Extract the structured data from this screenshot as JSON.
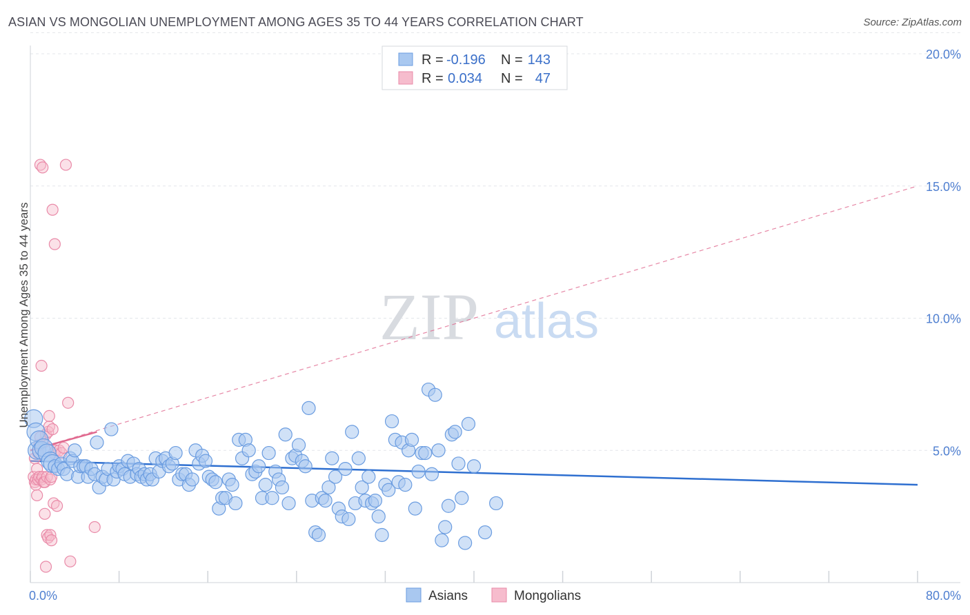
{
  "title": "ASIAN VS MONGOLIAN UNEMPLOYMENT AMONG AGES 35 TO 44 YEARS CORRELATION CHART",
  "source": "Source: ZipAtlas.com",
  "watermark": {
    "zip": "ZIP",
    "atlas": "atlas"
  },
  "colors": {
    "asian_fill": "#a9c8f0",
    "asian_stroke": "#6a9ce0",
    "asian_line": "#2e6fd0",
    "mongol_fill": "#f6bccd",
    "mongol_stroke": "#e98aa8",
    "mongol_line": "#e0698f",
    "grid": "#e3e6ea",
    "tick_text": "#4f7fd0"
  },
  "legend": {
    "rows": [
      {
        "r_label": "R =",
        "r_value": "-0.196",
        "n_label": "N =",
        "n_value": "143"
      },
      {
        "r_label": "R =",
        "r_value": "0.034",
        "n_label": "N =",
        "n_value": "47"
      }
    ]
  },
  "chart_data": {
    "type": "scatter",
    "title": "ASIAN VS MONGOLIAN UNEMPLOYMENT AMONG AGES 35 TO 44 YEARS CORRELATION CHART",
    "xlabel": "",
    "ylabel": "Unemployment Among Ages 35 to 44 years",
    "xlim": [
      0,
      80
    ],
    "ylim": [
      0,
      20
    ],
    "x_tick_labels": {
      "min": "0.0%",
      "max": "80.0%"
    },
    "y_ticks": [
      5,
      10,
      15,
      20
    ],
    "y_tick_labels": [
      "5.0%",
      "10.0%",
      "15.0%",
      "20.0%"
    ],
    "grid": true,
    "legend_position": "top-center",
    "series": [
      {
        "name": "Asians",
        "trend": {
          "x": [
            0,
            80
          ],
          "y": [
            4.6,
            3.7
          ]
        },
        "points": [
          [
            0.3,
            6.2
          ],
          [
            0.5,
            5.7
          ],
          [
            0.6,
            5.0
          ],
          [
            0.8,
            5.4
          ],
          [
            1.0,
            5.0
          ],
          [
            1.2,
            5.1
          ],
          [
            1.5,
            4.9
          ],
          [
            1.8,
            4.6
          ],
          [
            2.0,
            4.5
          ],
          [
            2.2,
            4.4
          ],
          [
            2.5,
            4.3
          ],
          [
            2.8,
            4.5
          ],
          [
            3.0,
            4.3
          ],
          [
            3.3,
            4.1
          ],
          [
            3.6,
            4.7
          ],
          [
            3.8,
            4.6
          ],
          [
            4.0,
            5.0
          ],
          [
            4.3,
            4.0
          ],
          [
            4.5,
            4.4
          ],
          [
            4.8,
            4.4
          ],
          [
            5.0,
            4.4
          ],
          [
            5.2,
            4.0
          ],
          [
            5.5,
            4.3
          ],
          [
            5.8,
            4.1
          ],
          [
            6.0,
            5.3
          ],
          [
            6.2,
            3.6
          ],
          [
            6.5,
            4.0
          ],
          [
            6.8,
            3.9
          ],
          [
            7.0,
            4.3
          ],
          [
            7.3,
            5.8
          ],
          [
            7.5,
            3.9
          ],
          [
            7.8,
            4.2
          ],
          [
            8.0,
            4.4
          ],
          [
            8.3,
            4.3
          ],
          [
            8.5,
            4.1
          ],
          [
            8.8,
            4.6
          ],
          [
            9.0,
            4.0
          ],
          [
            9.3,
            4.5
          ],
          [
            9.6,
            4.1
          ],
          [
            9.8,
            4.3
          ],
          [
            10.0,
            4.0
          ],
          [
            10.3,
            4.1
          ],
          [
            10.5,
            3.9
          ],
          [
            10.8,
            4.1
          ],
          [
            11.0,
            3.9
          ],
          [
            11.3,
            4.7
          ],
          [
            11.6,
            4.2
          ],
          [
            11.9,
            4.6
          ],
          [
            12.2,
            4.7
          ],
          [
            12.5,
            4.4
          ],
          [
            12.8,
            4.5
          ],
          [
            13.1,
            4.9
          ],
          [
            13.4,
            3.9
          ],
          [
            13.7,
            4.1
          ],
          [
            14.0,
            4.1
          ],
          [
            14.3,
            3.7
          ],
          [
            14.6,
            3.9
          ],
          [
            14.9,
            5.0
          ],
          [
            15.2,
            4.5
          ],
          [
            15.5,
            4.8
          ],
          [
            15.8,
            4.6
          ],
          [
            16.1,
            4.0
          ],
          [
            16.4,
            3.9
          ],
          [
            16.7,
            3.8
          ],
          [
            17.0,
            2.8
          ],
          [
            17.3,
            3.2
          ],
          [
            17.6,
            3.2
          ],
          [
            17.9,
            3.9
          ],
          [
            18.2,
            3.7
          ],
          [
            18.5,
            3.0
          ],
          [
            18.8,
            5.4
          ],
          [
            19.1,
            4.7
          ],
          [
            19.4,
            5.4
          ],
          [
            19.7,
            5.0
          ],
          [
            20.0,
            4.1
          ],
          [
            20.3,
            4.2
          ],
          [
            20.6,
            4.4
          ],
          [
            20.9,
            3.2
          ],
          [
            21.2,
            3.7
          ],
          [
            21.5,
            4.9
          ],
          [
            21.8,
            3.2
          ],
          [
            22.1,
            4.2
          ],
          [
            22.4,
            3.9
          ],
          [
            22.7,
            3.6
          ],
          [
            23.0,
            5.6
          ],
          [
            23.3,
            3.0
          ],
          [
            23.6,
            4.7
          ],
          [
            23.9,
            4.8
          ],
          [
            24.2,
            5.2
          ],
          [
            24.5,
            4.6
          ],
          [
            24.8,
            4.4
          ],
          [
            25.1,
            6.6
          ],
          [
            25.4,
            3.1
          ],
          [
            25.7,
            1.9
          ],
          [
            26.0,
            1.8
          ],
          [
            26.3,
            3.2
          ],
          [
            26.6,
            3.1
          ],
          [
            26.9,
            3.6
          ],
          [
            27.2,
            4.7
          ],
          [
            27.5,
            4.0
          ],
          [
            27.8,
            2.8
          ],
          [
            28.1,
            2.5
          ],
          [
            28.4,
            4.3
          ],
          [
            28.7,
            2.4
          ],
          [
            29.0,
            5.7
          ],
          [
            29.3,
            3.0
          ],
          [
            29.6,
            4.7
          ],
          [
            29.9,
            3.6
          ],
          [
            30.2,
            3.1
          ],
          [
            30.5,
            4.0
          ],
          [
            30.8,
            3.0
          ],
          [
            31.1,
            3.1
          ],
          [
            31.4,
            2.5
          ],
          [
            31.7,
            1.8
          ],
          [
            32.0,
            3.7
          ],
          [
            32.3,
            3.5
          ],
          [
            32.6,
            6.1
          ],
          [
            32.9,
            5.4
          ],
          [
            33.2,
            3.8
          ],
          [
            33.5,
            5.3
          ],
          [
            33.8,
            3.7
          ],
          [
            34.1,
            5.0
          ],
          [
            34.4,
            5.4
          ],
          [
            34.7,
            2.8
          ],
          [
            35.0,
            4.2
          ],
          [
            35.3,
            4.9
          ],
          [
            35.6,
            4.9
          ],
          [
            35.9,
            7.3
          ],
          [
            36.2,
            4.1
          ],
          [
            36.5,
            7.1
          ],
          [
            36.8,
            5.0
          ],
          [
            37.1,
            1.6
          ],
          [
            37.4,
            2.1
          ],
          [
            37.7,
            2.9
          ],
          [
            38.0,
            5.6
          ],
          [
            38.3,
            5.7
          ],
          [
            38.6,
            4.5
          ],
          [
            38.9,
            3.2
          ],
          [
            39.2,
            1.5
          ],
          [
            39.5,
            6.0
          ],
          [
            40.0,
            4.4
          ],
          [
            41.0,
            1.9
          ],
          [
            42.0,
            3.0
          ]
        ]
      },
      {
        "name": "Mongolians",
        "trend": {
          "x": [
            0,
            6
          ],
          "y": [
            5.0,
            5.7
          ],
          "extended": {
            "x": [
              0,
              80
            ],
            "y": [
              5.0,
              15.0
            ]
          }
        },
        "points": [
          [
            0.3,
            4.0
          ],
          [
            0.4,
            3.8
          ],
          [
            0.4,
            4.7
          ],
          [
            0.5,
            3.9
          ],
          [
            0.5,
            3.7
          ],
          [
            0.6,
            4.3
          ],
          [
            0.6,
            3.3
          ],
          [
            0.7,
            4.9
          ],
          [
            0.7,
            3.9
          ],
          [
            0.8,
            4.0
          ],
          [
            0.8,
            5.2
          ],
          [
            0.9,
            15.8
          ],
          [
            1.0,
            8.2
          ],
          [
            1.0,
            3.9
          ],
          [
            1.1,
            4.0
          ],
          [
            1.1,
            15.7
          ],
          [
            1.2,
            5.3
          ],
          [
            1.2,
            3.8
          ],
          [
            1.3,
            3.8
          ],
          [
            1.3,
            2.6
          ],
          [
            1.4,
            5.6
          ],
          [
            1.4,
            0.6
          ],
          [
            1.5,
            4.0
          ],
          [
            1.5,
            1.8
          ],
          [
            1.6,
            1.7
          ],
          [
            1.6,
            5.7
          ],
          [
            1.7,
            5.9
          ],
          [
            1.7,
            6.3
          ],
          [
            1.8,
            1.8
          ],
          [
            1.8,
            3.9
          ],
          [
            1.9,
            1.6
          ],
          [
            1.9,
            4.0
          ],
          [
            2.0,
            14.1
          ],
          [
            2.0,
            5.8
          ],
          [
            2.1,
            3.0
          ],
          [
            2.1,
            4.9
          ],
          [
            2.2,
            12.8
          ],
          [
            2.3,
            5.0
          ],
          [
            2.4,
            2.9
          ],
          [
            2.6,
            5.0
          ],
          [
            2.8,
            4.9
          ],
          [
            3.0,
            5.1
          ],
          [
            3.2,
            15.8
          ],
          [
            3.4,
            6.8
          ],
          [
            3.6,
            0.8
          ],
          [
            5.8,
            2.1
          ],
          [
            0.9,
            5.5
          ]
        ]
      }
    ]
  }
}
